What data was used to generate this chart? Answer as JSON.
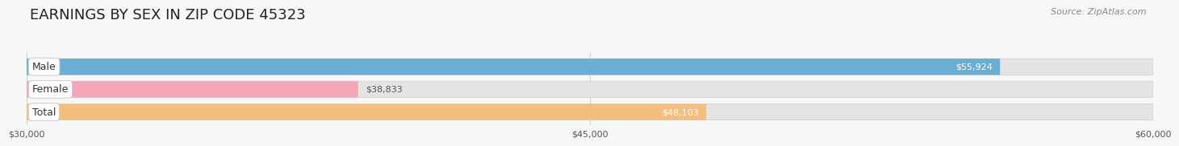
{
  "title": "EARNINGS BY SEX IN ZIP CODE 45323",
  "source": "Source: ZipAtlas.com",
  "categories": [
    "Male",
    "Female",
    "Total"
  ],
  "values": [
    55924,
    38833,
    48103
  ],
  "bar_colors": [
    "#6aaed6",
    "#f4a7b9",
    "#f5be81"
  ],
  "bar_labels": [
    "$55,924",
    "$38,833",
    "$48,103"
  ],
  "label_inside": [
    true,
    false,
    true
  ],
  "xlim_min": 30000,
  "xlim_max": 60000,
  "xticks": [
    30000,
    45000,
    60000
  ],
  "xtick_labels": [
    "$30,000",
    "$45,000",
    "$60,000"
  ],
  "background_color": "#f7f7f7",
  "bar_background_color": "#e4e4e4",
  "title_fontsize": 13,
  "source_fontsize": 8,
  "label_fontsize": 8,
  "tick_fontsize": 8,
  "cat_fontsize": 9
}
